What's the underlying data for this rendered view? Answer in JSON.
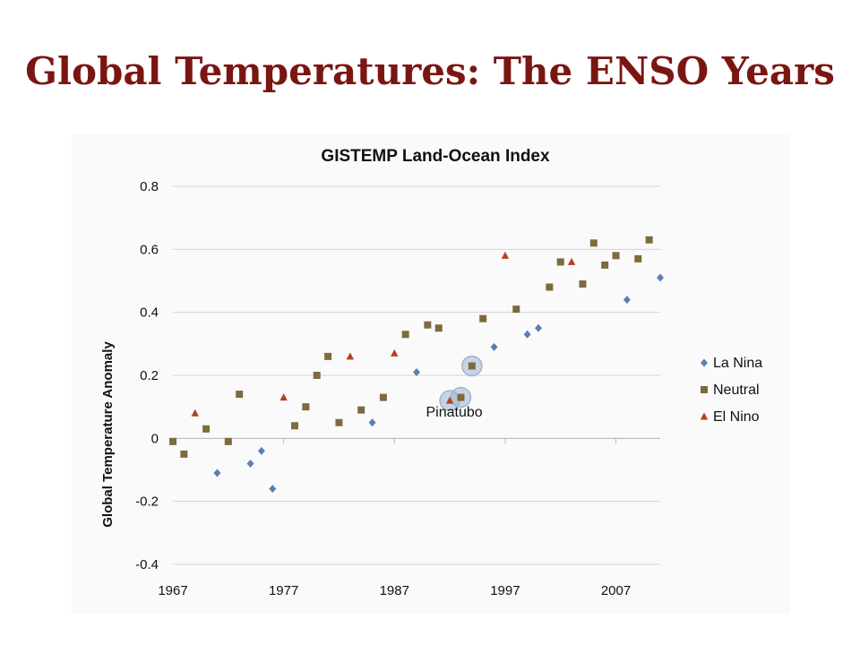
{
  "slide": {
    "title": "Global Temperatures: The ENSO Years"
  },
  "colors": {
    "title": "#7a1612",
    "la_nina": "#5b7fb5",
    "neutral": "#7d6b3c",
    "el_nino": "#b5401f",
    "highlight": "#9fb4d4",
    "grid": "#d4d4d4"
  },
  "chart_data": {
    "type": "scatter",
    "title": "GISTEMP Land-Ocean Index",
    "xlabel": "",
    "ylabel": "Global Temperature Anomaly",
    "xlim": [
      1967,
      2011
    ],
    "ylim": [
      -0.4,
      0.8
    ],
    "x_ticks": [
      1967,
      1977,
      1987,
      1997,
      2007
    ],
    "y_ticks": [
      -0.4,
      -0.2,
      0,
      0.2,
      0.4,
      0.6,
      0.8
    ],
    "y_tick_labels": [
      "-0.4",
      "-0.2",
      "0",
      "0.2",
      "0.4",
      "0.6",
      "0.8"
    ],
    "grid": "horizontal",
    "legend_position": "right",
    "series": [
      {
        "name": "La Nina",
        "marker": "diamond",
        "color": "#5b7fb5",
        "points": [
          [
            1971,
            -0.11
          ],
          [
            1974,
            -0.08
          ],
          [
            1975,
            -0.04
          ],
          [
            1976,
            -0.16
          ],
          [
            1985,
            0.05
          ],
          [
            1989,
            0.21
          ],
          [
            1996,
            0.29
          ],
          [
            1999,
            0.33
          ],
          [
            2000,
            0.35
          ],
          [
            2008,
            0.44
          ],
          [
            2011,
            0.51
          ]
        ]
      },
      {
        "name": "Neutral",
        "marker": "square",
        "color": "#7d6b3c",
        "points": [
          [
            1967,
            -0.01
          ],
          [
            1968,
            -0.05
          ],
          [
            1970,
            0.03
          ],
          [
            1972,
            -0.01
          ],
          [
            1973,
            0.14
          ],
          [
            1978,
            0.04
          ],
          [
            1979,
            0.1
          ],
          [
            1980,
            0.2
          ],
          [
            1981,
            0.26
          ],
          [
            1982,
            0.05
          ],
          [
            1984,
            0.09
          ],
          [
            1986,
            0.13
          ],
          [
            1988,
            0.33
          ],
          [
            1990,
            0.36
          ],
          [
            1991,
            0.35
          ],
          [
            1993,
            0.13
          ],
          [
            1994,
            0.23
          ],
          [
            1995,
            0.38
          ],
          [
            1998,
            0.41
          ],
          [
            2001,
            0.48
          ],
          [
            2002,
            0.56
          ],
          [
            2004,
            0.49
          ],
          [
            2005,
            0.62
          ],
          [
            2006,
            0.55
          ],
          [
            2007,
            0.58
          ],
          [
            2009,
            0.57
          ],
          [
            2010,
            0.63
          ]
        ]
      },
      {
        "name": "El Nino",
        "marker": "triangle",
        "color": "#b5401f",
        "points": [
          [
            1969,
            0.08
          ],
          [
            1977,
            0.13
          ],
          [
            1983,
            0.26
          ],
          [
            1987,
            0.27
          ],
          [
            1992,
            0.12
          ],
          [
            1997,
            0.58
          ],
          [
            2003,
            0.56
          ]
        ]
      }
    ],
    "highlighted_points": [
      [
        1992,
        0.12
      ],
      [
        1993,
        0.13
      ],
      [
        1994,
        0.23
      ]
    ],
    "annotations": [
      {
        "text": "Pinatubo",
        "x": 1992,
        "y": 0.05
      }
    ]
  }
}
